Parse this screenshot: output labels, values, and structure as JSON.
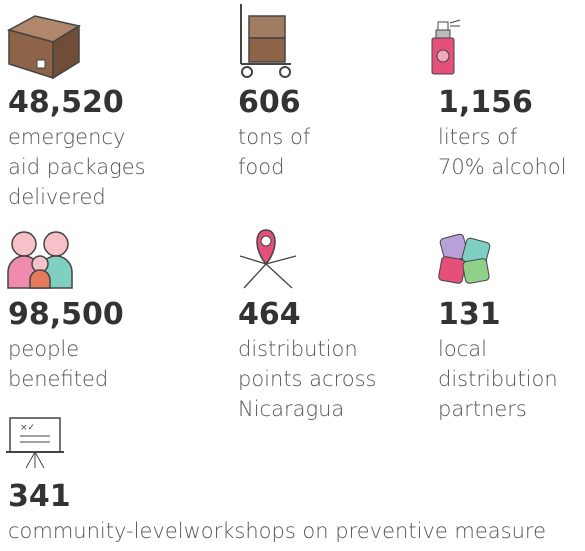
{
  "items": [
    {
      "number": "48,520",
      "lines": [
        "emergency",
        "aid packages",
        "delivered"
      ]
    },
    {
      "number": "606",
      "lines": [
        "tons of",
        "food"
      ]
    },
    {
      "number": "1,156",
      "lines": [
        "liters of",
        "70% alcohol"
      ]
    },
    {
      "number": "98,500",
      "lines": [
        "people",
        "benefited"
      ]
    },
    {
      "number": "464",
      "lines": [
        "distribution",
        "points across",
        "Nicaragua"
      ]
    },
    {
      "number": "131",
      "lines": [
        "local",
        "distribution",
        "partners"
      ]
    },
    {
      "number": "341",
      "lines": [
        "community-levelworkshops on preventive measure"
      ]
    }
  ]
}
